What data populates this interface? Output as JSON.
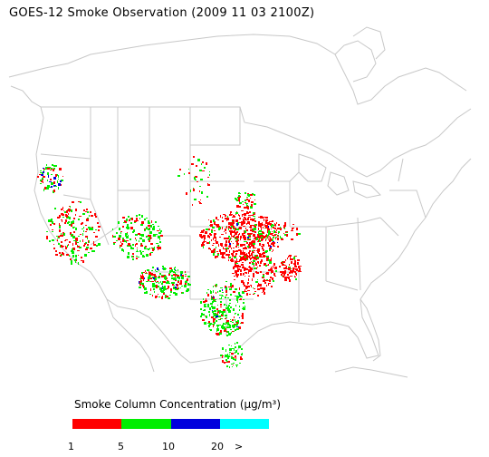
{
  "title": "GOES-12 Smoke Observation (2009 11 03  2100Z)",
  "legend": {
    "title": "Smoke Column Concentration (μg/m³)",
    "ticks": [
      "1",
      "5",
      "10",
      "20",
      ">"
    ],
    "colors": [
      "#ff0000",
      "#00ee00",
      "#0000dd",
      "#00ffff"
    ]
  },
  "map": {
    "region": "Continental United States",
    "line_color": "#c8c8c8"
  }
}
